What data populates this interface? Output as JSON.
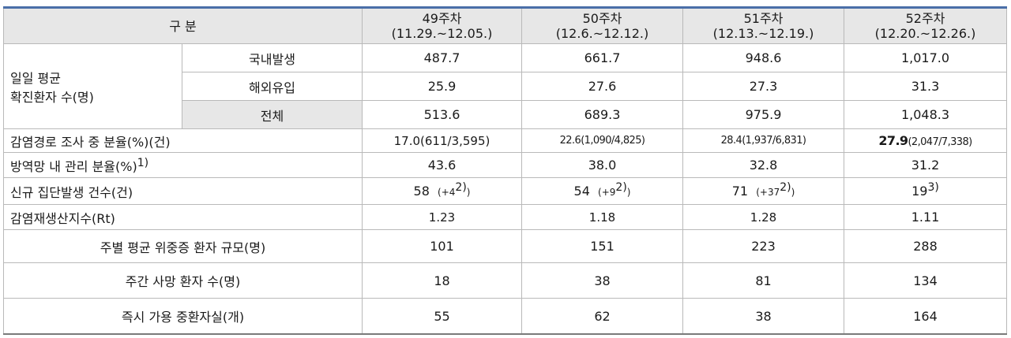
{
  "header": {
    "category": "구 분",
    "weeks": [
      {
        "week": "49주차",
        "range": "(11.29.~12.05.)"
      },
      {
        "week": "50주차",
        "range": "(12.6.~12.12.)"
      },
      {
        "week": "51주차",
        "range": "(12.13.~12.19.)"
      },
      {
        "week": "52주차",
        "range": "(12.20.~12.26.)"
      }
    ]
  },
  "daily_group_label": [
    "일일 평균",
    "확진환자 수(명)"
  ],
  "daily_rows": [
    {
      "label": "국내발생",
      "values": [
        "487.7",
        "661.7",
        "948.6",
        "1,017.0"
      ]
    },
    {
      "label": "해외유입",
      "values": [
        "25.9",
        "27.6",
        "27.3",
        "31.3"
      ]
    },
    {
      "label": "전체",
      "values": [
        "513.6",
        "689.3",
        "975.9",
        "1,048.3"
      ]
    }
  ],
  "investigation": {
    "label": "감염경로 조사 중 분율(%)(건)",
    "values": [
      {
        "main": "17.0",
        "detail": "(611/3,595)"
      },
      {
        "main": "22.6",
        "detail": "(1,090/4,825)"
      },
      {
        "main": "28.4",
        "detail": "(1,937/6,831)"
      },
      {
        "main": "27.9",
        "detail": "(2,047/7,338)"
      }
    ]
  },
  "quarantine": {
    "label": "방역망 내 관리 분율(%)",
    "note": "1)",
    "values": [
      "43.6",
      "38.0",
      "32.8",
      "31.2"
    ]
  },
  "clusters": {
    "label": "신규 집단발생 건수(건)",
    "values": [
      {
        "main": "58",
        "extra": "(+4",
        "note": "2)",
        "close": ")"
      },
      {
        "main": "54",
        "extra": "(+9",
        "note": "2)",
        "close": ")"
      },
      {
        "main": "71",
        "extra": "(+37",
        "note": "2)",
        "close": ")"
      },
      {
        "main": "19",
        "extra": "",
        "note": "3)",
        "close": ""
      }
    ]
  },
  "rt": {
    "label": "감염재생산지수(Rt)",
    "values": [
      "1.23",
      "1.18",
      "1.28",
      "1.11"
    ]
  },
  "severe": {
    "label": "주별 평균 위중증 환자 규모(명)",
    "values": [
      "101",
      "151",
      "223",
      "288"
    ]
  },
  "deaths": {
    "label": "주간 사망 환자 수(명)",
    "values": [
      "18",
      "38",
      "81",
      "134"
    ]
  },
  "icu_beds": {
    "label": "즉시 가용 중환자실(개)",
    "values": [
      "55",
      "62",
      "38",
      "164"
    ]
  }
}
